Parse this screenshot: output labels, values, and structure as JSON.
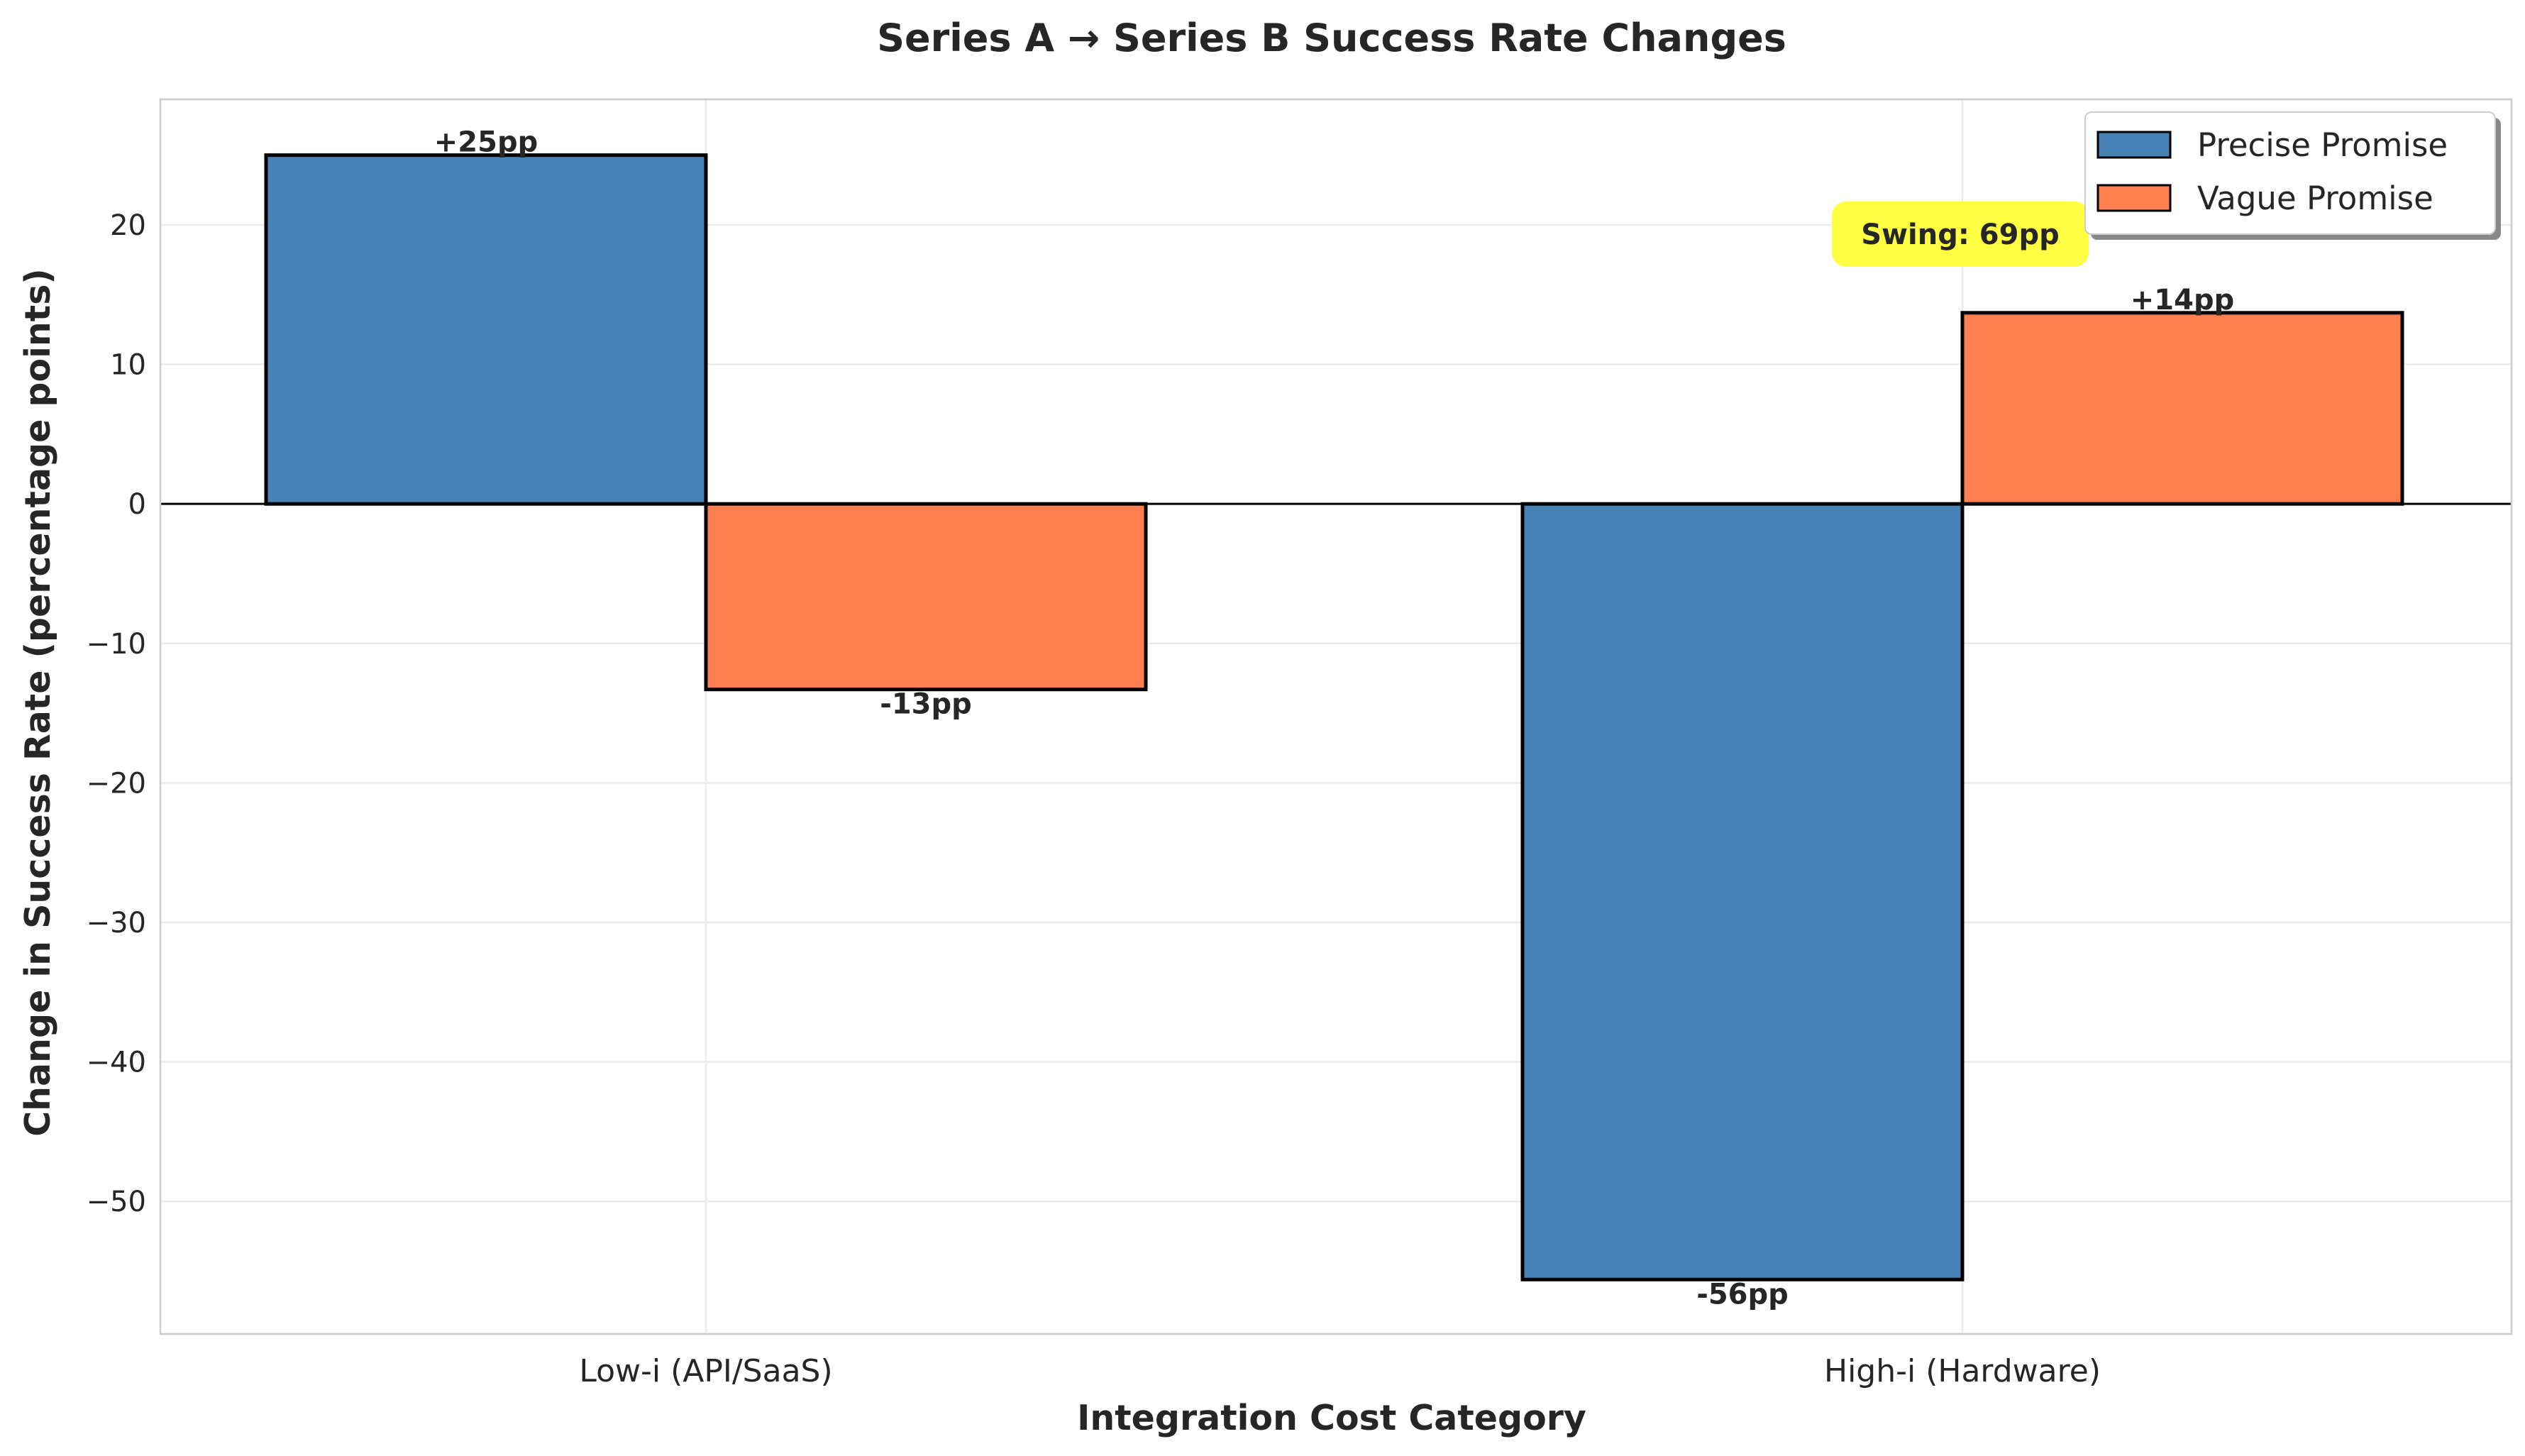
{
  "chart_data": {
    "type": "bar",
    "title": "Series A → Series B Success Rate Changes",
    "xlabel": "Integration Cost Category",
    "ylabel": "Change in Success Rate (percentage points)",
    "categories": [
      "Low-i (API/SaaS)",
      "High-i (Hardware)"
    ],
    "series": [
      {
        "name": "Precise Promise",
        "color": "#4682b4",
        "values": [
          25,
          -55.6
        ],
        "labels": [
          "+25pp",
          "-56pp"
        ]
      },
      {
        "name": "Vague Promise",
        "color": "#ff7f50",
        "values": [
          -13.3,
          13.7
        ],
        "labels": [
          "-13pp",
          "+14pp"
        ]
      }
    ],
    "ylim": [
      -59.5,
      29
    ],
    "yticks": [
      20,
      10,
      0,
      -10,
      -20,
      -30,
      -40,
      -50
    ],
    "ytick_labels": [
      "20",
      "10",
      "0",
      "−10",
      "−20",
      "−30",
      "−40",
      "−50"
    ],
    "grid": true,
    "legend_position": "top-right",
    "annotation": {
      "text": "Swing: 69pp",
      "color": "#ffff44"
    }
  }
}
